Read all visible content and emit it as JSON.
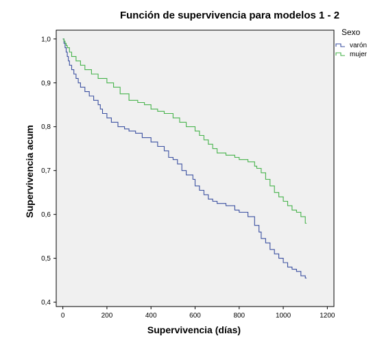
{
  "chart_data": {
    "type": "line",
    "step": true,
    "title": "Función de supervivencia para modelos 1 - 2",
    "xlabel": "Supervivencia (días)",
    "ylabel": "Supervivencia acum",
    "xlim": [
      -30,
      1230
    ],
    "ylim": [
      0.39,
      1.02
    ],
    "xticks": [
      0,
      200,
      400,
      600,
      800,
      1000,
      1200
    ],
    "yticks": [
      "0,4",
      "0,5",
      "0,6",
      "0,7",
      "0,8",
      "0,9",
      "1,0"
    ],
    "ytick_values": [
      0.4,
      0.5,
      0.6,
      0.7,
      0.8,
      0.9,
      1.0
    ],
    "grid": false,
    "background": "#f0f0f0",
    "legend": {
      "title": "Sexo",
      "position": "right"
    },
    "series": [
      {
        "name": "varón",
        "color": "#3a4fa0",
        "x": [
          0,
          5,
          10,
          15,
          20,
          25,
          30,
          40,
          50,
          60,
          70,
          80,
          100,
          120,
          140,
          160,
          170,
          180,
          200,
          220,
          250,
          280,
          300,
          330,
          360,
          400,
          430,
          460,
          480,
          500,
          520,
          540,
          560,
          590,
          600,
          620,
          640,
          660,
          680,
          700,
          740,
          780,
          800,
          840,
          870,
          890,
          900,
          920,
          940,
          960,
          980,
          1000,
          1020,
          1040,
          1060,
          1080,
          1100,
          1106
        ],
        "y": [
          1.0,
          0.99,
          0.98,
          0.97,
          0.96,
          0.95,
          0.94,
          0.93,
          0.92,
          0.91,
          0.9,
          0.89,
          0.88,
          0.87,
          0.86,
          0.85,
          0.84,
          0.83,
          0.82,
          0.81,
          0.8,
          0.795,
          0.79,
          0.785,
          0.775,
          0.765,
          0.755,
          0.745,
          0.73,
          0.725,
          0.715,
          0.7,
          0.69,
          0.68,
          0.665,
          0.655,
          0.645,
          0.635,
          0.63,
          0.625,
          0.62,
          0.61,
          0.605,
          0.595,
          0.575,
          0.56,
          0.545,
          0.535,
          0.52,
          0.51,
          0.5,
          0.49,
          0.48,
          0.475,
          0.47,
          0.46,
          0.455,
          0.455
        ]
      },
      {
        "name": "mujer",
        "color": "#45b24a",
        "x": [
          0,
          5,
          10,
          15,
          20,
          30,
          40,
          60,
          80,
          100,
          130,
          160,
          200,
          230,
          260,
          300,
          340,
          370,
          400,
          430,
          460,
          500,
          530,
          560,
          600,
          620,
          640,
          660,
          680,
          700,
          740,
          780,
          800,
          840,
          870,
          880,
          900,
          920,
          940,
          960,
          980,
          1000,
          1020,
          1040,
          1060,
          1080,
          1100,
          1106
        ],
        "y": [
          1.0,
          0.995,
          0.99,
          0.985,
          0.98,
          0.97,
          0.96,
          0.95,
          0.94,
          0.93,
          0.92,
          0.91,
          0.9,
          0.89,
          0.875,
          0.86,
          0.855,
          0.85,
          0.84,
          0.835,
          0.83,
          0.82,
          0.81,
          0.8,
          0.79,
          0.78,
          0.77,
          0.76,
          0.75,
          0.74,
          0.735,
          0.73,
          0.725,
          0.72,
          0.71,
          0.705,
          0.695,
          0.68,
          0.665,
          0.65,
          0.64,
          0.63,
          0.62,
          0.61,
          0.605,
          0.595,
          0.58,
          0.58
        ]
      }
    ]
  }
}
